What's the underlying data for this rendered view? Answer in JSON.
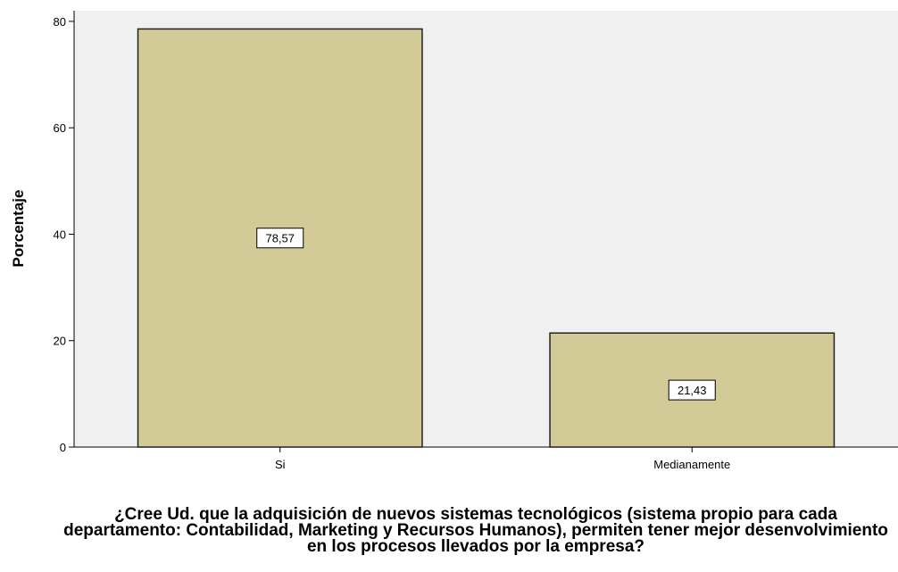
{
  "chart_data": {
    "type": "bar",
    "categories": [
      "Si",
      "Medianamente"
    ],
    "values": [
      78.57,
      21.43
    ],
    "data_labels": [
      "78,57",
      "21,43"
    ],
    "ylabel": "Porcentaje",
    "xlabel": "¿Cree Ud. que la adquisición de nuevos sistemas tecnológicos (sistema propio para cada departamento: Contabilidad, Marketing y Recursos Humanos), permiten tener mejor desenvolvimiento en los procesos llevados por la empresa?",
    "ylim": [
      0,
      82
    ],
    "yticks": [
      0,
      20,
      40,
      60,
      80
    ],
    "grid": false,
    "colors": {
      "bar_fill": "#d3cb97",
      "bar_stroke": "#222222",
      "plot_background": "#f0f0f0"
    }
  }
}
